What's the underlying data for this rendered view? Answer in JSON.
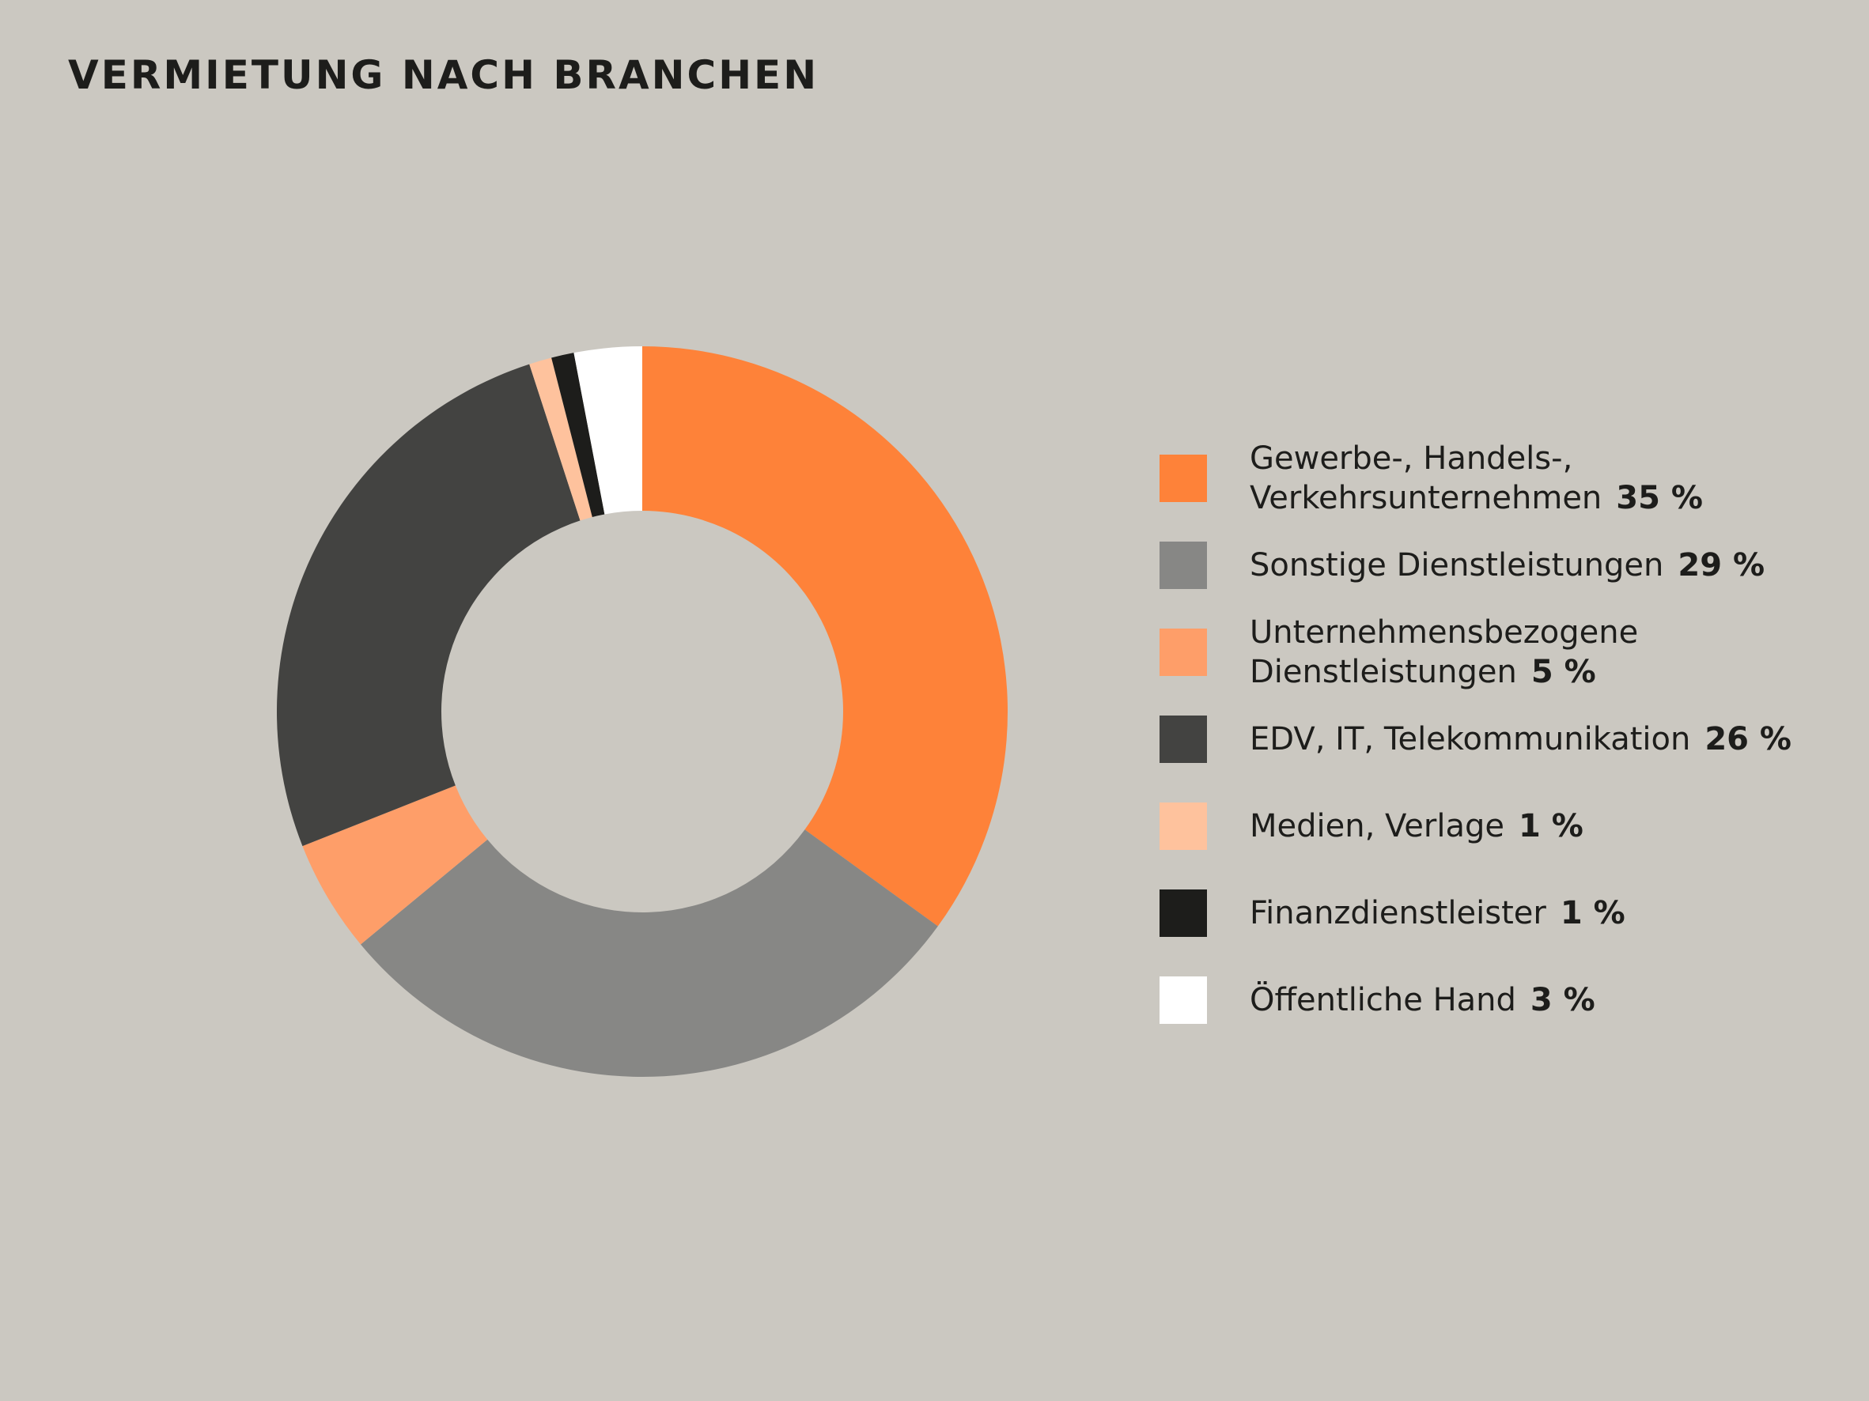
{
  "chart_data": {
    "type": "pie",
    "title": "VERMIETUNG NACH BRANCHEN",
    "categories": [
      "Gewerbe-, Handels-, Verkehrsunternehmen",
      "Sonstige Dienstleistungen",
      "Unternehmensbezogene Dienstleistungen",
      "EDV, IT, Telekommunikation",
      "Medien, Verlage",
      "Finanzdienstleister",
      "Öffentliche Hand"
    ],
    "values": [
      35,
      29,
      5,
      26,
      1,
      1,
      3
    ],
    "unit": "%",
    "legend_position": "right",
    "donut": true
  },
  "legend": {
    "items": [
      {
        "label_lines": "Gewerbe-, Handels-,\nVerkehrsunternehmen",
        "value_text": "35 %",
        "color": "#fe8239"
      },
      {
        "label_lines": "Sonstige Dienstleistungen",
        "value_text": "29 %",
        "color": "#878785"
      },
      {
        "label_lines": "Unternehmensbezogene\nDienstleistungen",
        "value_text": "5 %",
        "color": "#fe9e69"
      },
      {
        "label_lines": "EDV, IT, Telekommunikation",
        "value_text": "26 %",
        "color": "#434341"
      },
      {
        "label_lines": "Medien, Verlage",
        "value_text": "1 %",
        "color": "#fec29d"
      },
      {
        "label_lines": "Finanzdienstleister",
        "value_text": "1 %",
        "color": "#1d1d1b"
      },
      {
        "label_lines": "Öffentliche Hand",
        "value_text": "3 %",
        "color": "#ffffff"
      }
    ]
  },
  "colors": {
    "background": "#cbc8c1",
    "text": "#1d1d1b"
  }
}
